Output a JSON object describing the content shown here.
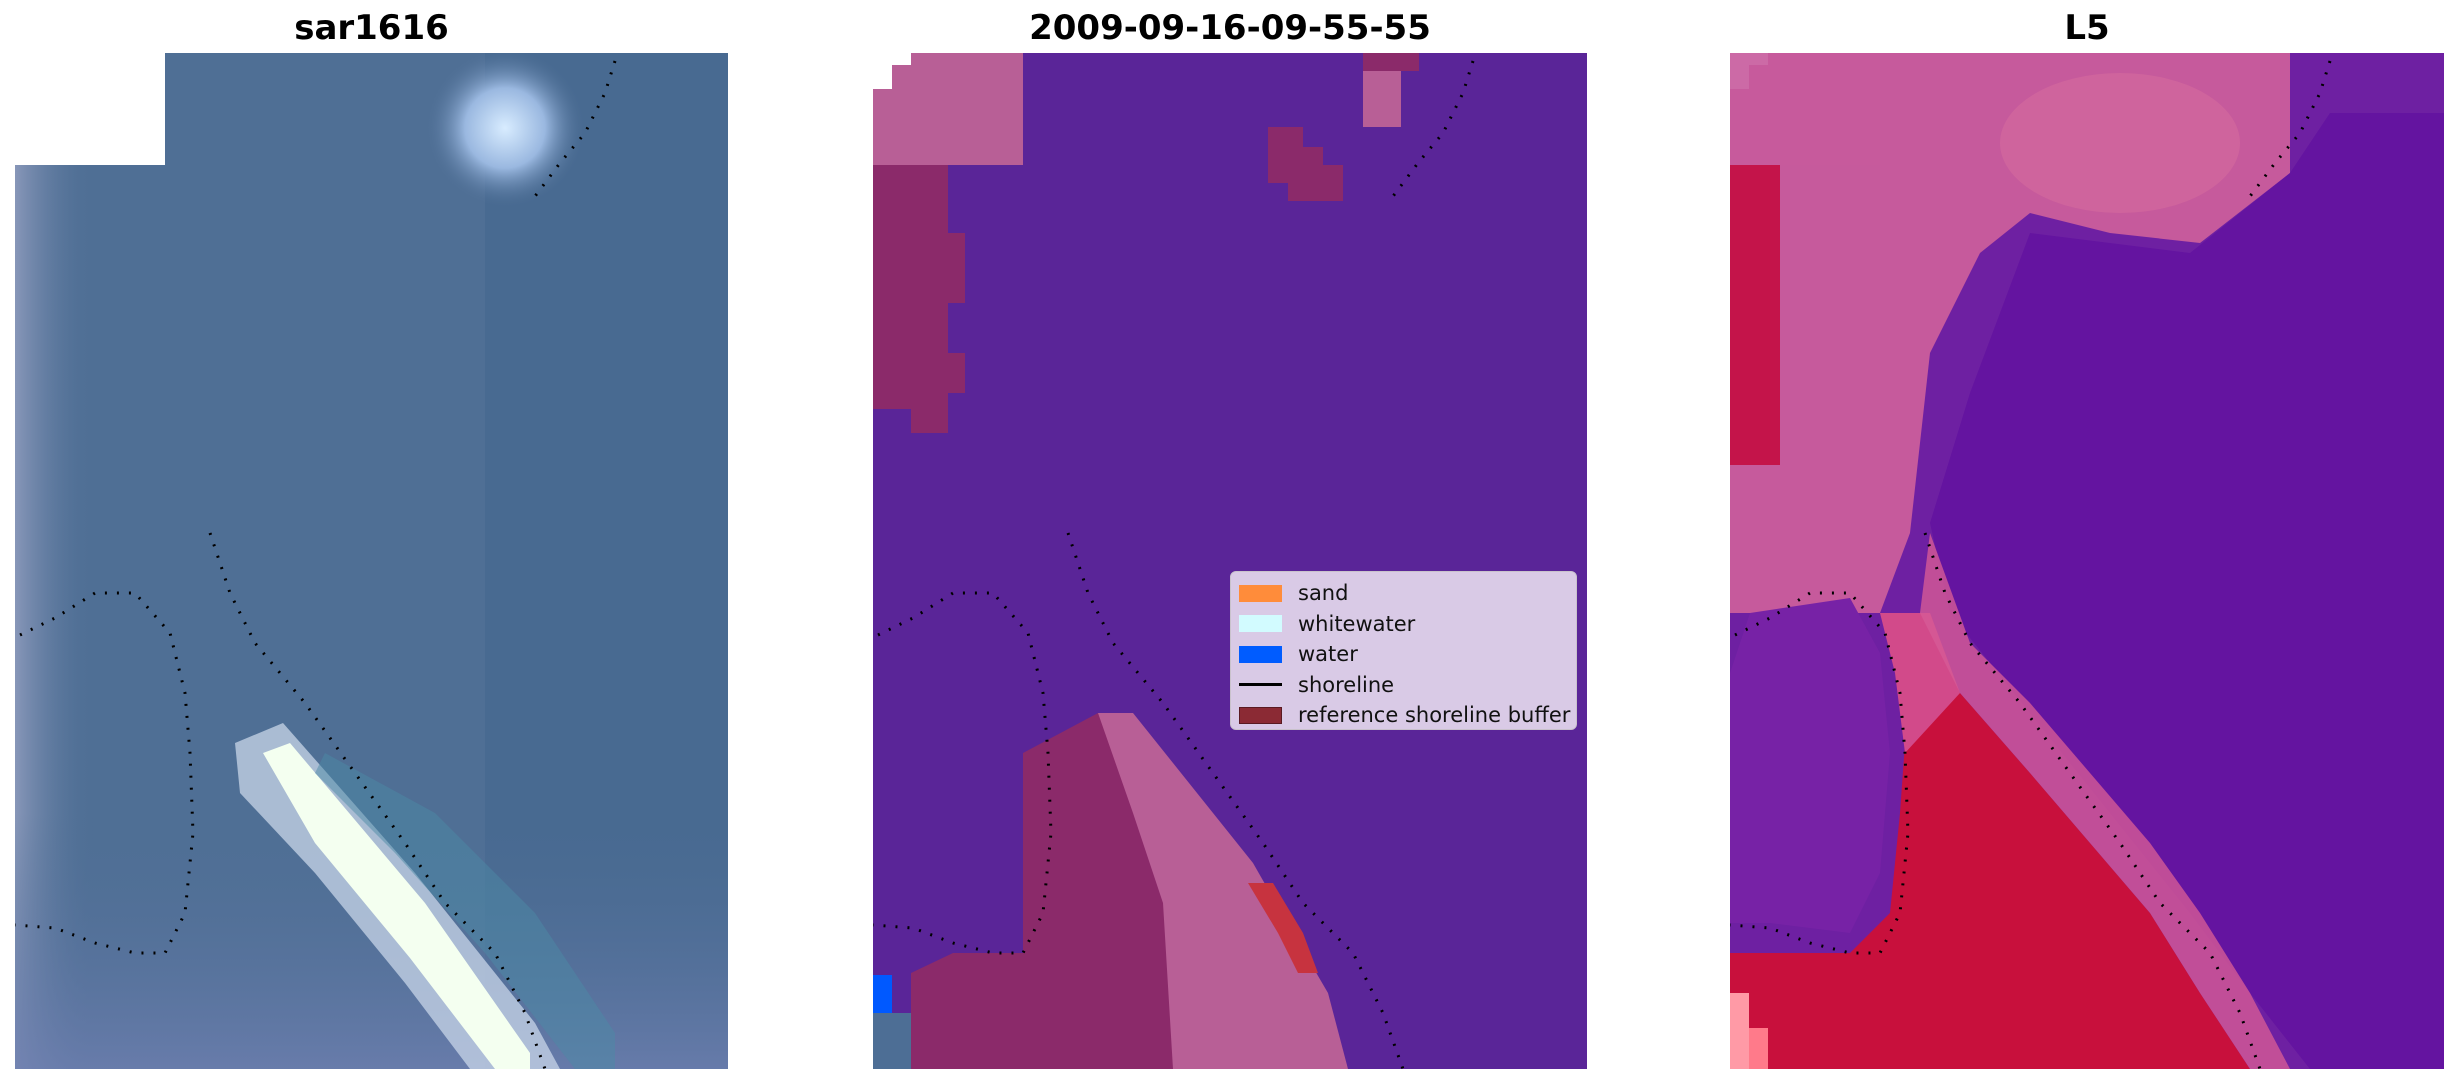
{
  "panels": [
    {
      "title": "sar1616"
    },
    {
      "title": "2009-09-16-09-55-55"
    },
    {
      "title": "L5"
    }
  ],
  "legend": {
    "items": [
      {
        "label": "sand",
        "color": "#ff8c3a",
        "kind": "patch"
      },
      {
        "label": "whitewater",
        "color": "#d2fbff",
        "kind": "patch"
      },
      {
        "label": "water",
        "color": "#005cff",
        "kind": "patch"
      },
      {
        "label": "shoreline",
        "color": "#000000",
        "kind": "line"
      },
      {
        "label": "reference shoreline buffer",
        "color": "#8b2a34",
        "kind": "patch"
      }
    ]
  },
  "colors": {
    "satellite_water": "#4c6c93",
    "classified_water_overlay": "#5a2598",
    "buffer": "#8b2a5c",
    "l5_water": "#6a1fa0",
    "l5_sand": "#c8103c",
    "shoreline_dots": "#000000"
  }
}
